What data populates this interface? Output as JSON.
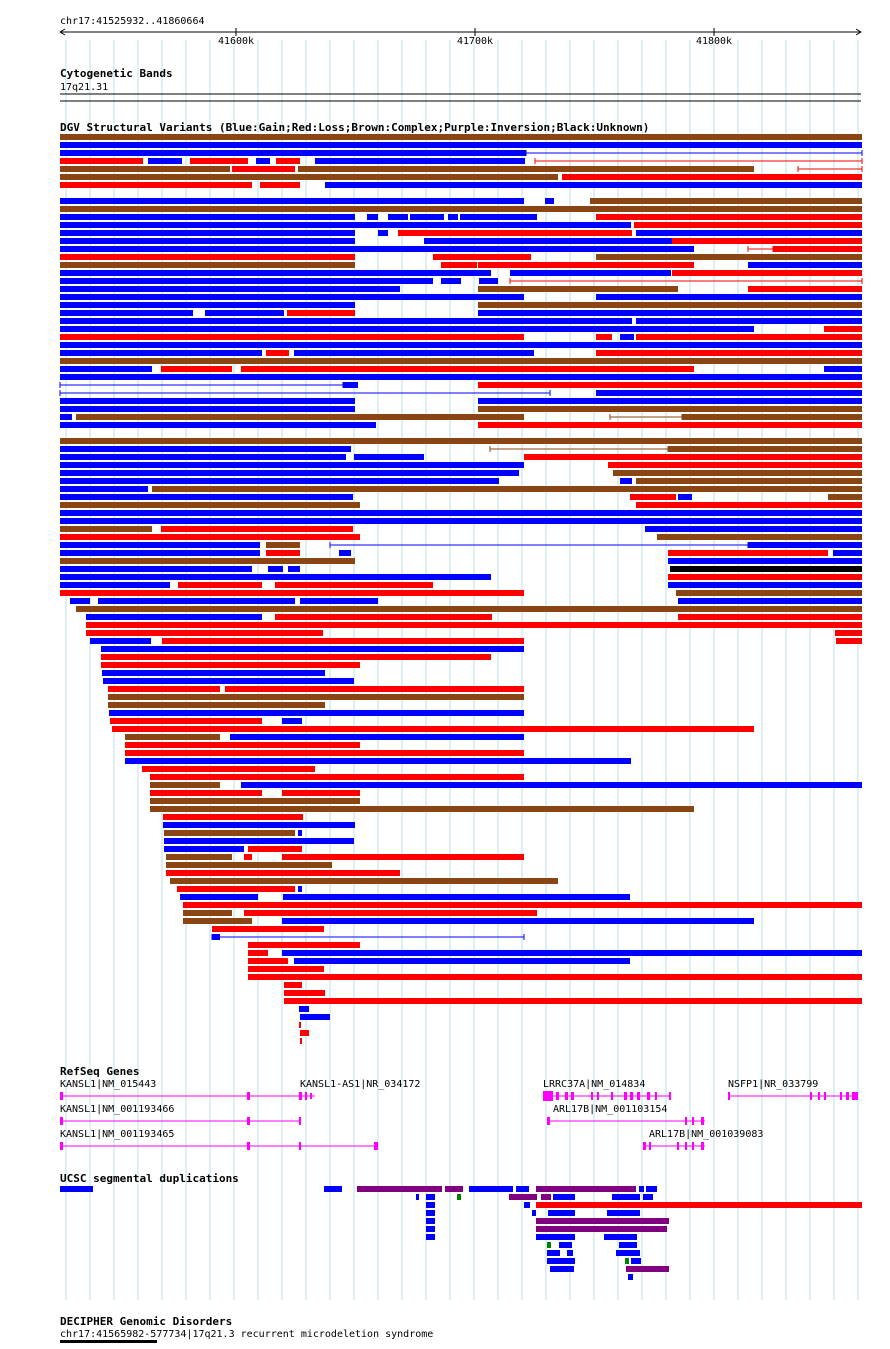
{
  "ruler": {
    "region_label": "chr17:41525932..41860664",
    "ticks": [
      "41600k",
      "41700k",
      "41800k"
    ]
  },
  "cytobands": {
    "title": "Cytogenetic Bands",
    "band_label": "17q21.31"
  },
  "dgv": {
    "title": "DGV Structural Variants (Blue:Gain;Red:Loss;Brown:Complex;Purple:Inversion;Black:Unknown)",
    "colors": {
      "gain": "#0000ff",
      "loss": "#ff0000",
      "complex": "#8b4513",
      "inversion": "#800080",
      "unknown": "#000000"
    }
  },
  "refseq": {
    "title": "RefSeq Genes",
    "genes": [
      "KANSL1|NM_015443",
      "KANSL1-AS1|NR_034172",
      "LRRC37A|NM_014834",
      "NSFP1|NR_033799",
      "KANSL1|NM_001193466",
      "ARL17B|NM_001103154",
      "KANSL1|NM_001193465",
      "ARL17B|NM_001039083"
    ],
    "color": "#ff00ff"
  },
  "segdups": {
    "title": "UCSC segmental duplications"
  },
  "decipher": {
    "title": "DECIPHER Genomic Disorders",
    "feature_label": "chr17:41565982-577734|17q21.3 recurrent microdeletion syndrome"
  }
}
